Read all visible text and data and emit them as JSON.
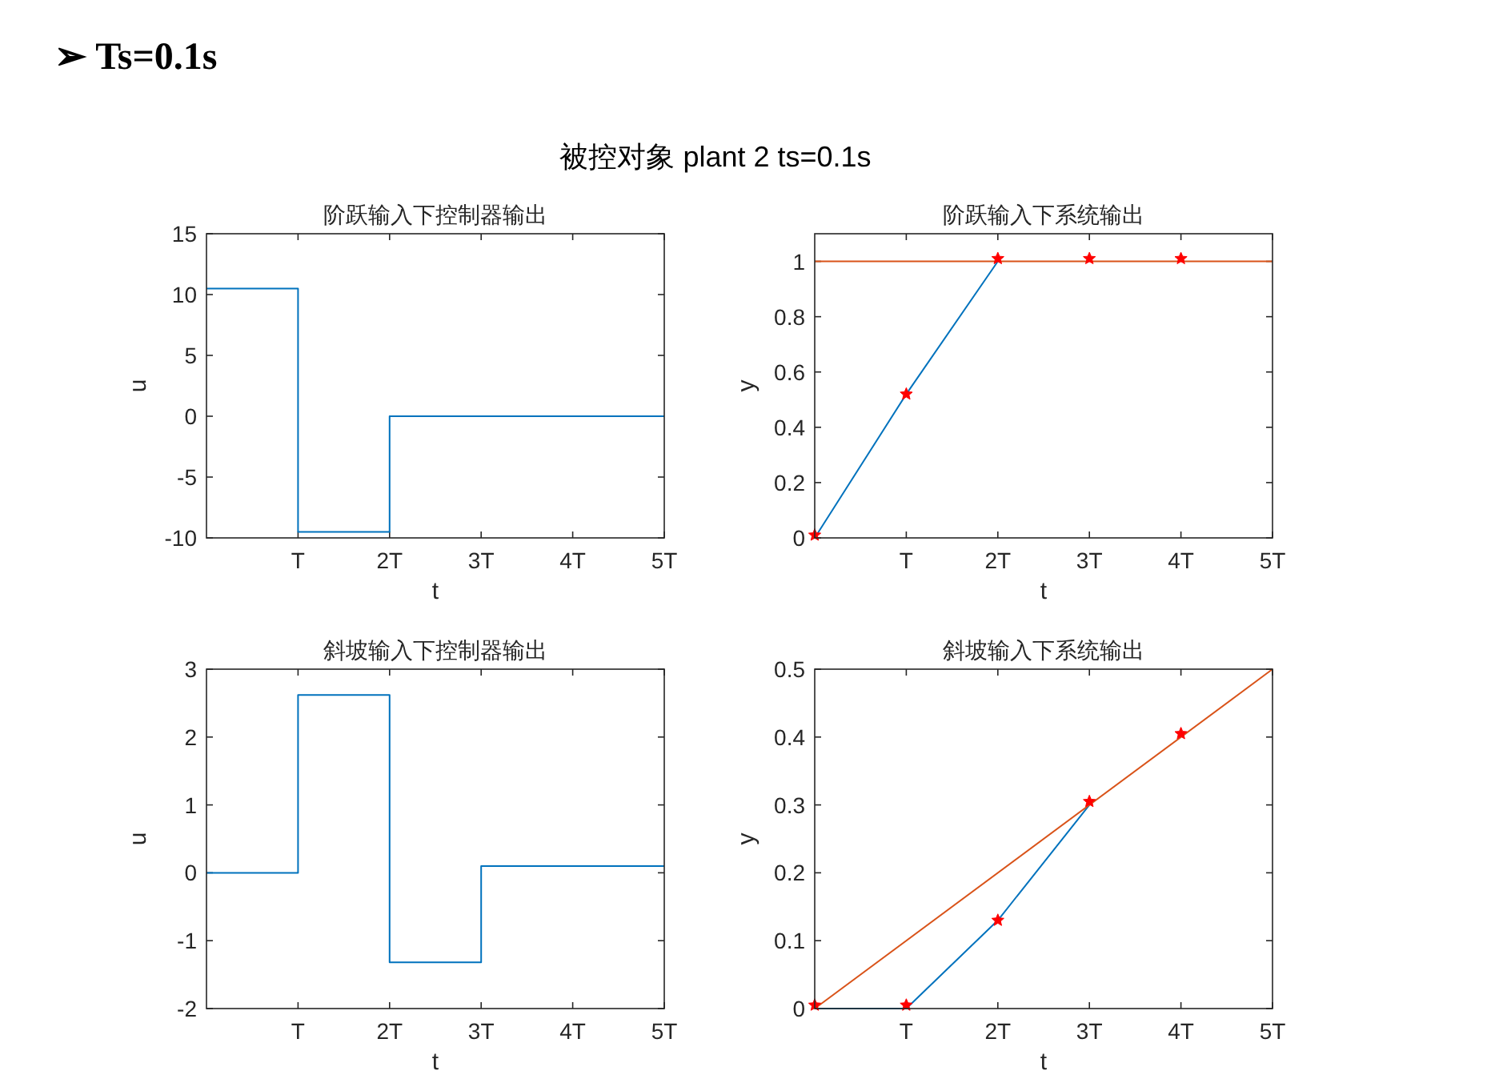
{
  "chart_data": [
    {
      "type": "step",
      "title": "阶跃输入下控制器输出",
      "xlabel": "t",
      "ylabel": "u",
      "annotations": [
        "➢  Ts=0.1s",
        "被控对象 plant 2  ts=0.1s"
      ],
      "xlim": [
        0,
        5
      ],
      "xticks": [
        {
          "value": 1,
          "label": "T"
        },
        {
          "value": 2,
          "label": "2T"
        },
        {
          "value": 3,
          "label": "3T"
        },
        {
          "value": 4,
          "label": "4T"
        },
        {
          "value": 5,
          "label": "5T"
        }
      ],
      "ylim": [
        -10,
        15
      ],
      "yticks": [
        -10,
        -5,
        0,
        5,
        10,
        15
      ],
      "series": [
        {
          "color": "#0072bd",
          "x": [
            0,
            1,
            2,
            3,
            4,
            5
          ],
          "values": [
            10.5,
            -9.5,
            0,
            0,
            0,
            0
          ]
        }
      ]
    },
    {
      "type": "line",
      "title": "阶跃输入下系统输出",
      "xlabel": "t",
      "ylabel": "y",
      "xlim": [
        0,
        5
      ],
      "xticks": [
        {
          "value": 1,
          "label": "T"
        },
        {
          "value": 2,
          "label": "2T"
        },
        {
          "value": 3,
          "label": "3T"
        },
        {
          "value": 4,
          "label": "4T"
        },
        {
          "value": 5,
          "label": "5T"
        }
      ],
      "ylim": [
        0,
        1.1
      ],
      "yticks": [
        0,
        0.2,
        0.4,
        0.6,
        0.8,
        1
      ],
      "series": [
        {
          "color": "#0072bd",
          "x": [
            0,
            1,
            2
          ],
          "values": [
            0,
            0.52,
            1
          ]
        },
        {
          "color": "#d95319",
          "x": [
            0,
            5
          ],
          "values": [
            1,
            1
          ]
        },
        {
          "type": "scatter",
          "marker": "star",
          "color": "#ff0000",
          "x": [
            0,
            1,
            2,
            3,
            4
          ],
          "values": [
            0.01,
            0.52,
            1.01,
            1.01,
            1.01
          ]
        }
      ]
    },
    {
      "type": "step",
      "title": "斜坡输入下控制器输出",
      "xlabel": "t",
      "ylabel": "u",
      "xlim": [
        0,
        5
      ],
      "xticks": [
        {
          "value": 1,
          "label": "T"
        },
        {
          "value": 2,
          "label": "2T"
        },
        {
          "value": 3,
          "label": "3T"
        },
        {
          "value": 4,
          "label": "4T"
        },
        {
          "value": 5,
          "label": "5T"
        }
      ],
      "ylim": [
        -2,
        3
      ],
      "yticks": [
        -2,
        -1,
        0,
        1,
        2,
        3
      ],
      "series": [
        {
          "color": "#0072bd",
          "x": [
            0,
            1,
            2,
            3,
            4,
            5
          ],
          "values": [
            0,
            2.62,
            -1.32,
            0.1,
            0.1,
            0.1
          ]
        }
      ]
    },
    {
      "type": "line",
      "title": "斜坡输入下系统输出",
      "xlabel": "t",
      "ylabel": "y",
      "xlim": [
        0,
        5
      ],
      "xticks": [
        {
          "value": 1,
          "label": "T"
        },
        {
          "value": 2,
          "label": "2T"
        },
        {
          "value": 3,
          "label": "3T"
        },
        {
          "value": 4,
          "label": "4T"
        },
        {
          "value": 5,
          "label": "5T"
        }
      ],
      "ylim": [
        0,
        0.5
      ],
      "yticks": [
        0,
        0.1,
        0.2,
        0.3,
        0.4,
        0.5
      ],
      "series": [
        {
          "color": "#0072bd",
          "x": [
            0,
            1,
            2,
            3
          ],
          "values": [
            0,
            0,
            0.13,
            0.3
          ]
        },
        {
          "color": "#d95319",
          "x": [
            0,
            5
          ],
          "values": [
            0,
            0.5
          ]
        },
        {
          "type": "scatter",
          "marker": "star",
          "color": "#ff0000",
          "x": [
            0,
            1,
            2,
            3,
            4
          ],
          "values": [
            0.005,
            0.005,
            0.13,
            0.305,
            0.405
          ]
        }
      ]
    }
  ]
}
